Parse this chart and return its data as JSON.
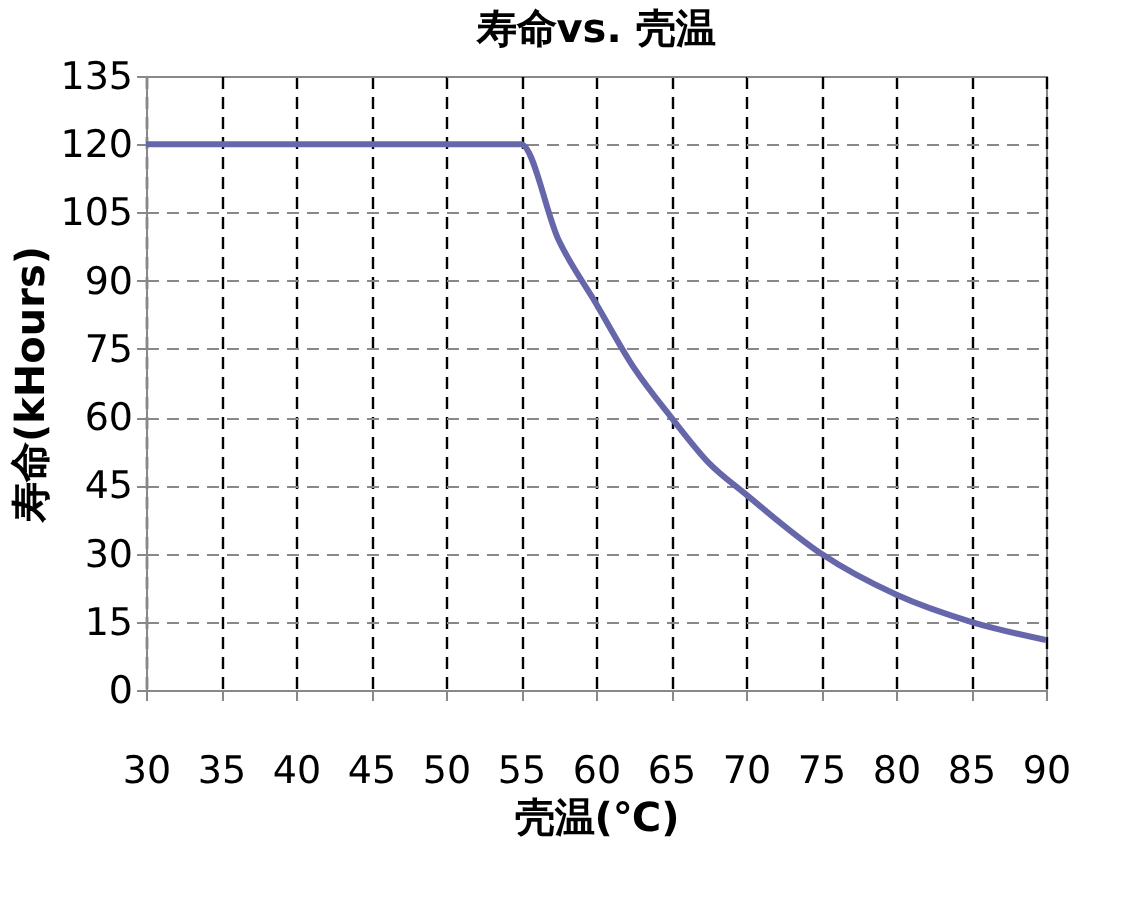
{
  "chart_data": {
    "type": "line",
    "title": "寿命vs. 壳温",
    "xlabel": "壳温(℃)",
    "ylabel": "寿命(kHours)",
    "x": [
      30,
      55,
      57.5,
      60,
      62.5,
      65,
      67.5,
      70,
      75,
      80,
      85,
      90
    ],
    "series": [
      {
        "color": "#6666aa",
        "values": [
          120,
          120,
          99,
          85,
          71,
          60,
          50,
          43,
          30,
          21,
          15,
          11
        ]
      }
    ],
    "xlim": [
      30,
      90
    ],
    "xticks": [
      30,
      35,
      40,
      45,
      50,
      55,
      60,
      65,
      70,
      75,
      80,
      85,
      90
    ],
    "ylim": [
      0,
      135
    ],
    "yticks": [
      0,
      15,
      30,
      45,
      60,
      75,
      90,
      105,
      120,
      135
    ],
    "grid": true,
    "marker": "none",
    "line_style": "solid"
  }
}
